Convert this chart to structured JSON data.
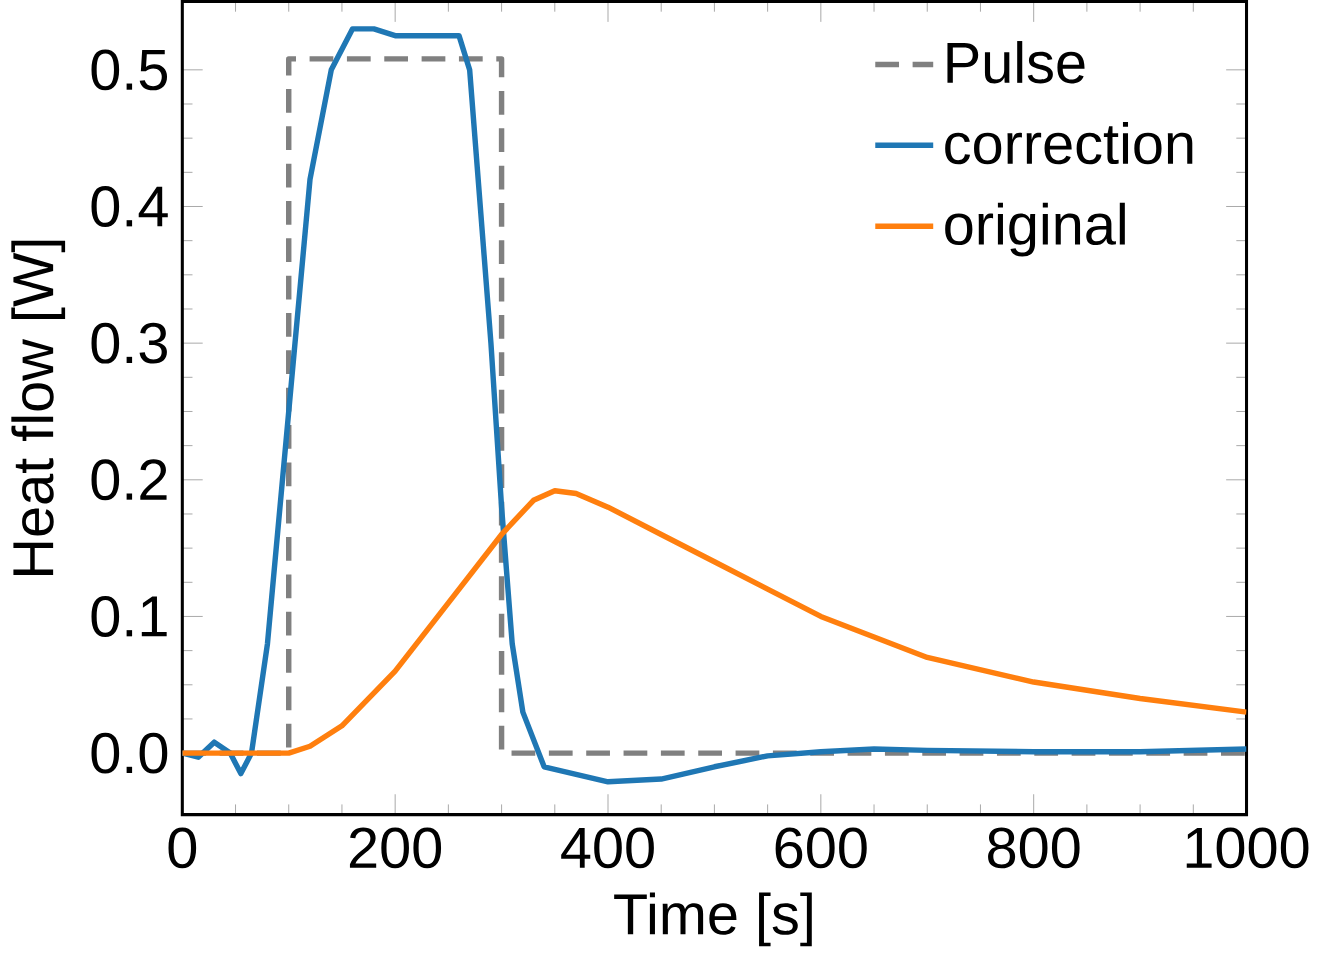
{
  "chart_data": {
    "type": "line",
    "xlabel": "Time [s]",
    "ylabel": "Heat flow [W]",
    "xlim": [
      0,
      1000
    ],
    "ylim": [
      -0.045,
      0.55
    ],
    "xticks": [
      0,
      200,
      400,
      600,
      800,
      1000
    ],
    "yticks": [
      {
        "value": 0,
        "label": "0.0"
      },
      0.1,
      0.2,
      0.3,
      0.4,
      0.5
    ],
    "legend": "top right",
    "grid": false,
    "series": [
      {
        "name": "Pulse",
        "color": "#808080",
        "line_style": "dashed",
        "x": [
          0,
          100,
          100,
          300,
          300,
          1000
        ],
        "values": [
          0,
          0,
          0.508,
          0.508,
          0,
          0
        ]
      },
      {
        "name": "correction",
        "color": "#1f77b4",
        "x": [
          0,
          15,
          30,
          45,
          55,
          65,
          80,
          100,
          120,
          140,
          160,
          180,
          200,
          250,
          260,
          270,
          290,
          300,
          310,
          320,
          340,
          400,
          450,
          500,
          550,
          600,
          650,
          700,
          800,
          900,
          1000
        ],
        "values": [
          0,
          -0.003,
          0.008,
          0,
          -0.015,
          0,
          0.08,
          0.25,
          0.42,
          0.5,
          0.53,
          0.53,
          0.525,
          0.525,
          0.525,
          0.5,
          0.3,
          0.18,
          0.08,
          0.03,
          -0.01,
          -0.021,
          -0.019,
          -0.01,
          -0.002,
          0.001,
          0.003,
          0.002,
          0.001,
          0.001,
          0.003
        ]
      },
      {
        "name": "original",
        "color": "#ff7f0e",
        "x": [
          0,
          100,
          120,
          150,
          200,
          250,
          300,
          330,
          350,
          370,
          400,
          450,
          500,
          550,
          600,
          650,
          700,
          800,
          900,
          1000
        ],
        "values": [
          0,
          0,
          0.005,
          0.02,
          0.06,
          0.11,
          0.16,
          0.185,
          0.192,
          0.19,
          0.18,
          0.16,
          0.14,
          0.12,
          0.1,
          0.085,
          0.07,
          0.052,
          0.04,
          0.03
        ]
      }
    ]
  }
}
